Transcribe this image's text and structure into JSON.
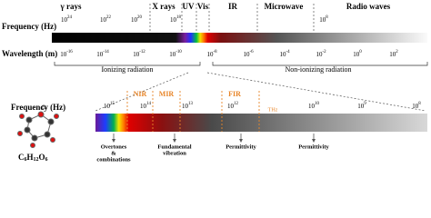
{
  "top": {
    "frequency_label": "Frequency (Hz)",
    "wavelength_label": "Wavelength (m)",
    "bands": [
      "γ rays",
      "X rays",
      "UV",
      "Vis",
      "IR",
      "Microwave",
      "Radio waves"
    ],
    "frequency_ticks": [
      {
        "base": "10",
        "exp": "24"
      },
      {
        "base": "10",
        "exp": "22"
      },
      {
        "base": "10",
        "exp": "20"
      },
      {
        "base": "10",
        "exp": "18"
      },
      {
        "base": "10",
        "exp": "8"
      }
    ],
    "wavelength_ticks": [
      {
        "base": "10",
        "exp": "-16"
      },
      {
        "base": "10",
        "exp": "-14"
      },
      {
        "base": "10",
        "exp": "-12"
      },
      {
        "base": "10",
        "exp": "-10"
      },
      {
        "base": "10",
        "exp": "-8"
      },
      {
        "base": "10",
        "exp": "-6"
      },
      {
        "base": "10",
        "exp": "-4"
      },
      {
        "base": "10",
        "exp": "-2"
      },
      {
        "base": "10",
        "exp": "0"
      },
      {
        "base": "10",
        "exp": "2"
      }
    ],
    "ionizing": "Ionizing radiation",
    "non_ionizing": "Non-ionizing radiation"
  },
  "bottom": {
    "frequency_label": "Frequency (Hz)",
    "regions": [
      "NIR",
      "MIR",
      "FIR"
    ],
    "thz": "THz",
    "frequency_ticks": [
      {
        "base": "10",
        "exp": "15"
      },
      {
        "base": "10",
        "exp": "14"
      },
      {
        "base": "10",
        "exp": "13"
      },
      {
        "base": "10",
        "exp": "12"
      },
      {
        "base": "10",
        "exp": "10"
      },
      {
        "base": "10",
        "exp": "9"
      },
      {
        "base": "10",
        "exp": "8"
      }
    ],
    "annotations": [
      {
        "lines": [
          "Overtones",
          "&",
          "combinations"
        ]
      },
      {
        "lines": [
          "Fundamental",
          "vibration"
        ]
      },
      {
        "lines": [
          "Permittivity"
        ]
      },
      {
        "lines": [
          "Permittivity"
        ]
      }
    ],
    "formula": [
      "C",
      "6",
      "H",
      "12",
      "O",
      "6"
    ]
  }
}
